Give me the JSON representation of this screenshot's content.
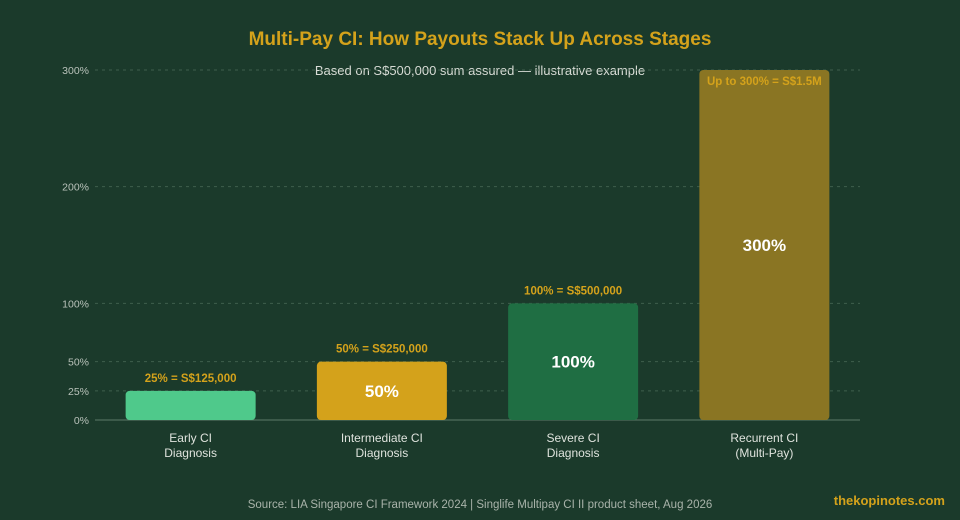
{
  "chart_data": {
    "type": "bar",
    "title": "Multi-Pay CI: How Payouts Stack Up Across Stages",
    "subtitle": "Based on S$500,000 sum assured — illustrative example",
    "categories": [
      [
        "Early CI",
        "Diagnosis"
      ],
      [
        "Intermediate CI",
        "Diagnosis"
      ],
      [
        "Severe CI",
        "Diagnosis"
      ],
      [
        "Recurrent CI",
        "(Multi-Pay)"
      ]
    ],
    "values": [
      25,
      50,
      100,
      300
    ],
    "colors": [
      "#4fc98b",
      "#d4a21b",
      "#1f6e43",
      "#8a7523"
    ],
    "data_labels": [
      "25% = S$125,000",
      "50% = S$250,000",
      "100% = S$500,000",
      "Up to 300% = S$1.5M"
    ],
    "inner_labels": [
      "",
      "50%",
      "100%",
      "300%"
    ],
    "yticks": [
      0,
      25,
      50,
      100,
      200,
      300
    ],
    "ytick_labels": [
      "0%",
      "25%",
      "50%",
      "100%",
      "200%",
      "300%"
    ],
    "ylim": [
      0,
      300
    ],
    "xlabel": "",
    "ylabel": "",
    "grid": true,
    "legend": "none"
  },
  "footer": {
    "source": "Source: LIA Singapore CI Framework 2024 | Singlife Multipay CI II product sheet, Aug 2026",
    "brand": "thekopinotes.com"
  }
}
